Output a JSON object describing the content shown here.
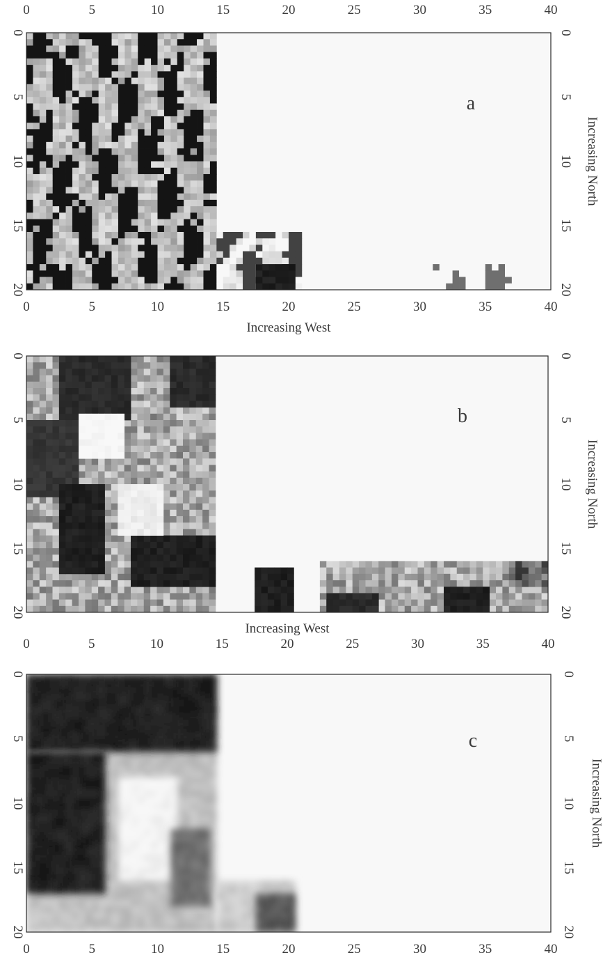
{
  "chart_data": [
    {
      "type": "heatmap",
      "panel_label": "a",
      "xlabel": "Increasing West",
      "ylabel": "Increasing North",
      "xlim": [
        0,
        40
      ],
      "ylim": [
        0,
        20
      ],
      "x_ticks": [
        "0",
        "5",
        "10",
        "15",
        "20",
        "25",
        "30",
        "35",
        "40"
      ],
      "y_ticks": [
        "0",
        "5",
        "10",
        "15",
        "20"
      ],
      "regions": [
        {
          "x0": 0,
          "x1": 14.5,
          "y0": 0,
          "y1": 20,
          "level": 0.55,
          "pattern": "patchy"
        },
        {
          "x0": 14.5,
          "x1": 21,
          "y0": 15.5,
          "y1": 20,
          "level": 0.35,
          "pattern": "patchy"
        },
        {
          "x0": 17.5,
          "x1": 20.5,
          "y0": 18,
          "y1": 20,
          "level": 0.95,
          "pattern": "solid"
        },
        {
          "x0": 31,
          "x1": 37,
          "y0": 18,
          "y1": 20,
          "level": 0.15,
          "pattern": "patchy"
        }
      ]
    },
    {
      "type": "heatmap",
      "panel_label": "b",
      "xlabel": "Increasing West",
      "ylabel": "Increasing North",
      "xlim": [
        0,
        40
      ],
      "ylim": [
        0,
        20
      ],
      "x_ticks": [
        "0",
        "5",
        "10",
        "15",
        "20",
        "25",
        "30",
        "35",
        "40"
      ],
      "y_ticks": [
        "0",
        "5",
        "10",
        "15",
        "20"
      ],
      "regions": [
        {
          "x0": 0,
          "x1": 14.5,
          "y0": 0,
          "y1": 20,
          "level": 0.35,
          "pattern": "blocky"
        },
        {
          "x0": 2.5,
          "x1": 8,
          "y0": 0,
          "y1": 5,
          "level": 0.9,
          "pattern": "solid"
        },
        {
          "x0": 11,
          "x1": 14.5,
          "y0": 0,
          "y1": 4,
          "level": 0.9,
          "pattern": "solid"
        },
        {
          "x0": 0,
          "x1": 4,
          "y0": 5,
          "y1": 11,
          "level": 0.85,
          "pattern": "solid"
        },
        {
          "x0": 2.5,
          "x1": 6,
          "y0": 10,
          "y1": 17,
          "level": 0.95,
          "pattern": "solid"
        },
        {
          "x0": 8,
          "x1": 14.5,
          "y0": 14,
          "y1": 18,
          "level": 0.95,
          "pattern": "solid"
        },
        {
          "x0": 4,
          "x1": 7.5,
          "y0": 4.5,
          "y1": 8,
          "level": 0.0,
          "pattern": "solid"
        },
        {
          "x0": 7,
          "x1": 10.5,
          "y0": 10,
          "y1": 14,
          "level": 0.05,
          "pattern": "solid"
        },
        {
          "x0": 17.5,
          "x1": 20.5,
          "y0": 16.5,
          "y1": 20,
          "level": 0.95,
          "pattern": "solid"
        },
        {
          "x0": 22.5,
          "x1": 40,
          "y0": 16,
          "y1": 20,
          "level": 0.35,
          "pattern": "blocky"
        },
        {
          "x0": 23,
          "x1": 27,
          "y0": 18.5,
          "y1": 20,
          "level": 0.9,
          "pattern": "solid"
        },
        {
          "x0": 32,
          "x1": 35.5,
          "y0": 18,
          "y1": 20,
          "level": 0.95,
          "pattern": "solid"
        },
        {
          "x0": 37,
          "x1": 40,
          "y0": 16,
          "y1": 18,
          "level": 0.65,
          "pattern": "blocky"
        }
      ]
    },
    {
      "type": "heatmap",
      "panel_label": "c",
      "xlabel": "",
      "ylabel": "Increasing North",
      "xlim": [
        0,
        40
      ],
      "ylim": [
        0,
        20
      ],
      "x_ticks": [
        "0",
        "5",
        "10",
        "15",
        "20",
        "25",
        "30",
        "35",
        "40"
      ],
      "y_ticks": [
        "0",
        "5",
        "10",
        "15",
        "20"
      ],
      "regions": [
        {
          "x0": 0,
          "x1": 14.5,
          "y0": 0,
          "y1": 20,
          "level": 0.25,
          "pattern": "smooth"
        },
        {
          "x0": 0,
          "x1": 14.5,
          "y0": 0,
          "y1": 6,
          "level": 0.95,
          "pattern": "smooth"
        },
        {
          "x0": 0,
          "x1": 6,
          "y0": 6,
          "y1": 17,
          "level": 0.95,
          "pattern": "smooth"
        },
        {
          "x0": 7,
          "x1": 11.5,
          "y0": 8,
          "y1": 16,
          "level": 0.0,
          "pattern": "smooth"
        },
        {
          "x0": 11,
          "x1": 14,
          "y0": 12,
          "y1": 18,
          "level": 0.6,
          "pattern": "smooth"
        },
        {
          "x0": 14.5,
          "x1": 20.5,
          "y0": 16,
          "y1": 20,
          "level": 0.2,
          "pattern": "smooth"
        },
        {
          "x0": 17.5,
          "x1": 20.5,
          "y0": 17,
          "y1": 20,
          "level": 0.7,
          "pattern": "smooth"
        }
      ]
    }
  ]
}
